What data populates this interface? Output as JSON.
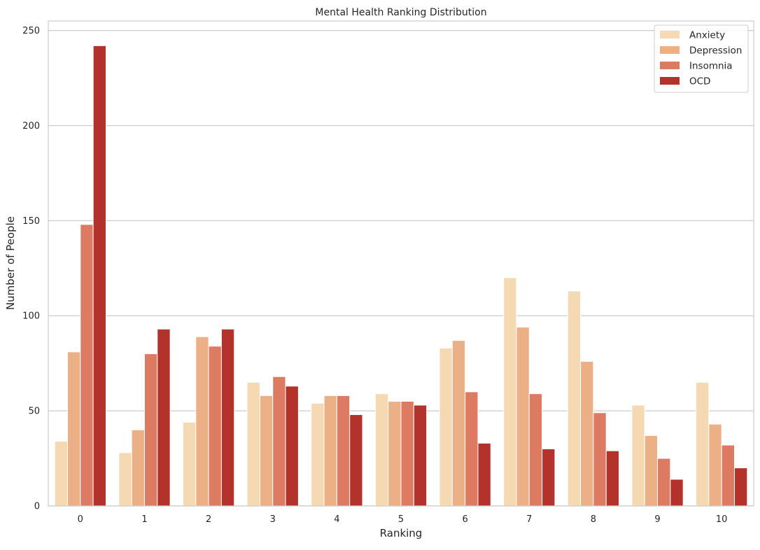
{
  "chart_data": {
    "type": "bar",
    "title": "Mental Health Ranking Distribution",
    "xlabel": "Ranking",
    "ylabel": "Number of People",
    "categories": [
      "0",
      "1",
      "2",
      "3",
      "4",
      "5",
      "6",
      "7",
      "8",
      "9",
      "10"
    ],
    "series": [
      {
        "name": "Anxiety",
        "color": "#f5d9b3",
        "values": [
          34,
          28,
          44,
          65,
          54,
          59,
          83,
          120,
          113,
          53,
          65
        ]
      },
      {
        "name": "Depression",
        "color": "#ecb086",
        "values": [
          81,
          40,
          89,
          58,
          58,
          55,
          87,
          94,
          76,
          37,
          43
        ]
      },
      {
        "name": "Insomnia",
        "color": "#dc7a62",
        "values": [
          148,
          80,
          84,
          68,
          58,
          55,
          60,
          59,
          49,
          25,
          32
        ]
      },
      {
        "name": "OCD",
        "color": "#b3322c",
        "values": [
          242,
          93,
          93,
          63,
          48,
          53,
          33,
          30,
          29,
          14,
          20
        ]
      }
    ],
    "ylim": [
      0,
      255
    ],
    "yticks": [
      "0",
      "50",
      "100",
      "150",
      "200",
      "250"
    ],
    "grid": "horizontal",
    "legend_position": "top-right"
  },
  "style": {
    "grid_color": "#cccccc",
    "frame_color": "#cccccc"
  }
}
